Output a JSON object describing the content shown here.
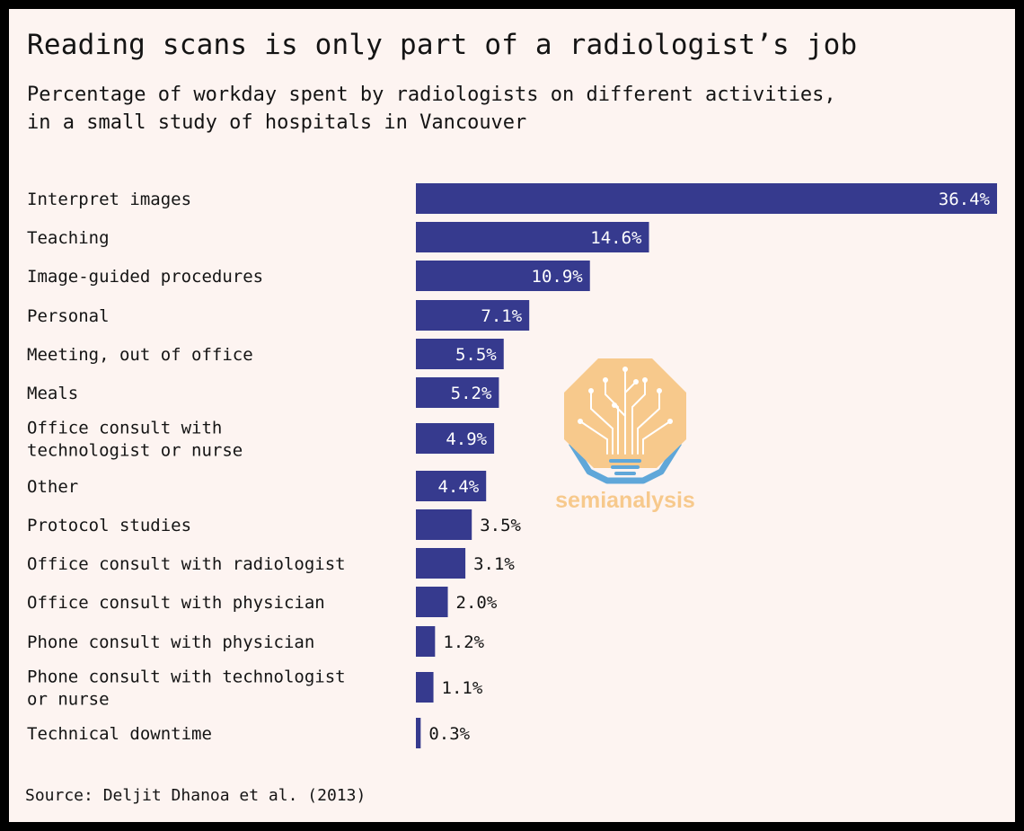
{
  "title": "Reading scans is only part of a radiologist’s job",
  "subtitle_lines": [
    "Percentage of workday spent by radiologists on different activities,",
    "in a small study of hospitals in Vancouver"
  ],
  "source": "Source: Deljit Dhanoa et al. (2013)",
  "logo_text": "semianalysis",
  "colors": {
    "bar": "#363a8e",
    "background": "#fdf4f1",
    "frame": "#000000",
    "logo_orange": "#f7c98c",
    "logo_blue": "#5fa7d9"
  },
  "chart_data": {
    "type": "bar",
    "orientation": "horizontal",
    "unit": "%",
    "categories": [
      [
        "Interpret images"
      ],
      [
        "Teaching"
      ],
      [
        "Image-guided procedures"
      ],
      [
        "Personal"
      ],
      [
        "Meeting, out of office"
      ],
      [
        "Meals"
      ],
      [
        "Office consult with",
        "technologist or nurse"
      ],
      [
        "Other"
      ],
      [
        "Protocol studies"
      ],
      [
        "Office consult with radiologist"
      ],
      [
        "Office consult with physician"
      ],
      [
        "Phone consult with physician"
      ],
      [
        "Phone consult with technologist",
        "or nurse"
      ],
      [
        "Technical downtime"
      ]
    ],
    "values": [
      36.4,
      14.6,
      10.9,
      7.1,
      5.5,
      5.2,
      4.9,
      4.4,
      3.5,
      3.1,
      2.0,
      1.2,
      1.1,
      0.3
    ],
    "value_labels": [
      "36.4%",
      "14.6%",
      "10.9%",
      "7.1%",
      "5.5%",
      "5.2%",
      "4.9%",
      "4.4%",
      "3.5%",
      "3.1%",
      "2.0%",
      "1.2%",
      "1.1%",
      "0.3%"
    ],
    "xlim": [
      0,
      36.4
    ],
    "grid": false,
    "legend": "none"
  }
}
